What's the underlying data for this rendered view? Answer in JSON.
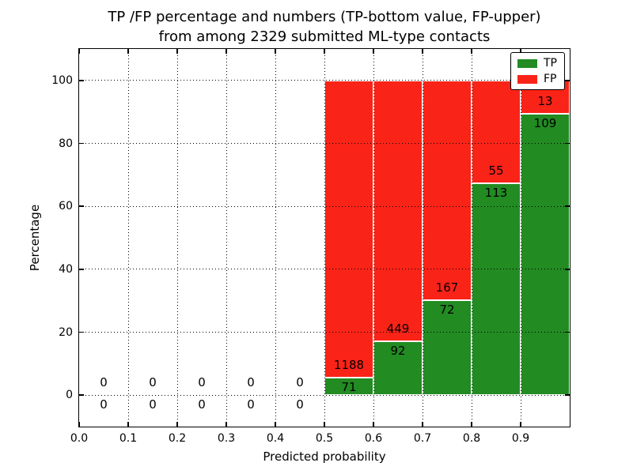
{
  "chart_data": {
    "type": "bar",
    "stacked": true,
    "normalized_to": 100,
    "title_line1": "TP /FP percentage and numbers (TP-bottom value, FP-upper)",
    "title_line2": "from among 2329 submitted ML-type contacts",
    "xlabel": "Predicted probability",
    "ylabel": "Percentage",
    "total_submitted": 2329,
    "xlim": [
      0.0,
      1.0
    ],
    "ylim": [
      -10,
      110
    ],
    "bin_width": 0.1,
    "bins": [
      0.0,
      0.1,
      0.2,
      0.3,
      0.4,
      0.5,
      0.6,
      0.7,
      0.8,
      0.9
    ],
    "x_ticks": [
      0.0,
      0.1,
      0.2,
      0.3,
      0.4,
      0.5,
      0.6,
      0.7,
      0.8,
      0.9
    ],
    "x_tick_labels": [
      "0.0",
      "0.1",
      "0.2",
      "0.3",
      "0.4",
      "0.5",
      "0.6",
      "0.7",
      "0.8",
      "0.9"
    ],
    "y_ticks": [
      0,
      20,
      40,
      60,
      80,
      100
    ],
    "y_tick_labels": [
      "0",
      "20",
      "40",
      "60",
      "80",
      "100"
    ],
    "grid": "dotted",
    "series": [
      {
        "name": "TP",
        "color": "#228b22",
        "values": [
          0,
          0,
          0,
          0,
          0,
          71,
          92,
          72,
          113,
          109
        ]
      },
      {
        "name": "FP",
        "color": "#fa2318",
        "values": [
          0,
          0,
          0,
          0,
          0,
          1188,
          449,
          167,
          55,
          13
        ]
      }
    ],
    "legend": {
      "position": "upper right",
      "entries": [
        {
          "label": "TP",
          "color": "#228b22"
        },
        {
          "label": "FP",
          "color": "#fa2318"
        }
      ]
    }
  }
}
